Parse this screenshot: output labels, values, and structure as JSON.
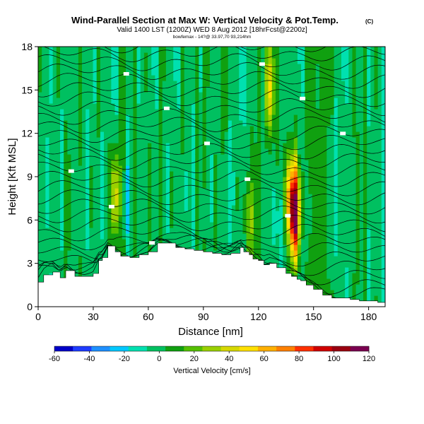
{
  "chart_data": {
    "type": "heatmap",
    "title": "Wind-Parallel Section at Max W: Vertical Velocity & Pot.Temp.",
    "copyright": "(C)",
    "subtitle": "Valid 1400 LST (1200Z) WED 8 Aug 2012 [18hrFcst@2200z]",
    "subtitle2": "bowfemax - 14?@ 33.97,70 93,214hm",
    "xlabel": "Distance [nm]",
    "ylabel": "Height [Kft MSL]",
    "xlim": [
      0,
      189
    ],
    "ylim": [
      0,
      18
    ],
    "x_ticks": [
      "0",
      "30",
      "60",
      "90",
      "120",
      "150",
      "180"
    ],
    "y_ticks": [
      "0",
      "3",
      "6",
      "9",
      "12",
      "15",
      "18"
    ],
    "colorbar": {
      "label": "Vertical Velocity [cm/s]",
      "ticks": [
        "-60",
        "-40",
        "-20",
        "0",
        "20",
        "40",
        "60",
        "80",
        "100",
        "120"
      ],
      "range": [
        -60,
        120
      ],
      "colors": [
        "#0000c8",
        "#1f3cff",
        "#1e90ff",
        "#00c8ff",
        "#00e0b0",
        "#00c060",
        "#10a010",
        "#55c000",
        "#9ad000",
        "#d6d800",
        "#ffe000",
        "#ffb000",
        "#ff8000",
        "#ff3000",
        "#d00000",
        "#9a0010",
        "#7a0050"
      ]
    },
    "terrain": {
      "x": [
        0,
        3,
        8,
        12,
        15,
        20,
        25,
        30,
        33,
        35,
        38,
        42,
        45,
        50,
        55,
        60,
        65,
        70,
        75,
        80,
        85,
        90,
        95,
        100,
        105,
        110,
        112,
        115,
        117,
        120,
        123,
        126,
        130,
        135,
        138,
        141,
        143,
        146,
        150,
        155,
        160,
        165,
        170,
        175,
        180,
        185,
        189
      ],
      "height_kft": [
        1.7,
        2.2,
        2.4,
        2.0,
        2.5,
        2.1,
        2.1,
        2.3,
        3.2,
        3.4,
        4.2,
        3.8,
        3.5,
        3.4,
        3.6,
        3.8,
        4.4,
        4.4,
        4.1,
        4.0,
        3.9,
        3.8,
        3.7,
        3.6,
        3.7,
        4.1,
        3.8,
        3.6,
        3.3,
        3.2,
        2.9,
        3.0,
        2.7,
        2.3,
        2.1,
        1.9,
        1.8,
        1.5,
        1.2,
        0.8,
        0.6,
        0.6,
        0.5,
        0.4,
        0.4,
        0.3,
        0.3
      ]
    },
    "isentropes": {
      "count": 30,
      "description": "Potential temperature contours, labels shown as small white boxes"
    },
    "updrafts": [
      {
        "x": 42,
        "z": 7.5,
        "w": 45
      },
      {
        "x": 48,
        "z": 7.0,
        "w": -15
      },
      {
        "x": 115,
        "z": 6.0,
        "w": 30
      },
      {
        "x": 126,
        "z": 15.0,
        "w": 45
      },
      {
        "x": 131,
        "z": 6.0,
        "w": -20
      },
      {
        "x": 140,
        "z": 6.5,
        "w": 110
      },
      {
        "x": 137,
        "z": 7.5,
        "w": 60
      }
    ]
  }
}
